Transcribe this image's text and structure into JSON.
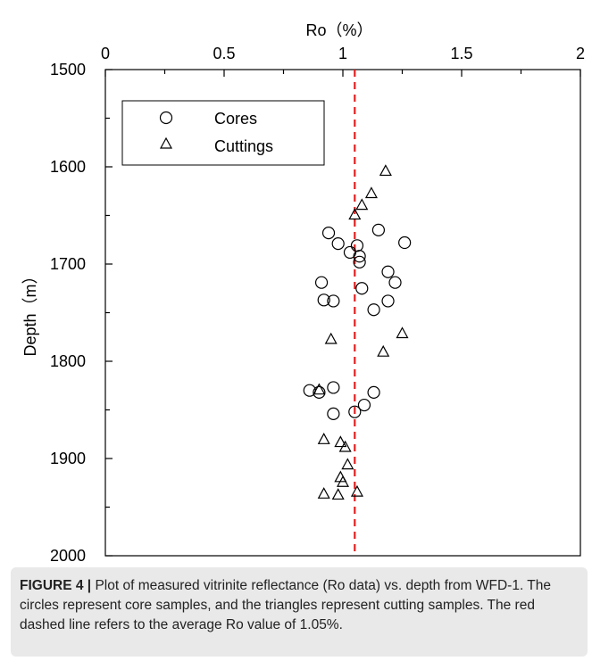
{
  "chart_data": {
    "type": "scatter",
    "x_axis_label": "Ro（%）",
    "y_axis_label": "Depth（m）",
    "x_axis_position": "top",
    "y_axis_inverted": true,
    "xlim": [
      0,
      2
    ],
    "ylim": [
      1500,
      2000
    ],
    "x_ticks": [
      "0",
      "0.5",
      "1",
      "1.5",
      "2"
    ],
    "y_ticks": [
      "1500",
      "1600",
      "1700",
      "1800",
      "1900",
      "2000"
    ],
    "grid": false,
    "legend": {
      "placement": "top-left",
      "entries": [
        "Cores",
        "Cuttings"
      ]
    },
    "series": [
      {
        "name": "Cores",
        "marker": "circle",
        "points": [
          {
            "x": 0.94,
            "y": 1668
          },
          {
            "x": 0.98,
            "y": 1679
          },
          {
            "x": 1.03,
            "y": 1688
          },
          {
            "x": 1.06,
            "y": 1681
          },
          {
            "x": 1.07,
            "y": 1692
          },
          {
            "x": 1.07,
            "y": 1698
          },
          {
            "x": 1.15,
            "y": 1665
          },
          {
            "x": 1.26,
            "y": 1678
          },
          {
            "x": 1.19,
            "y": 1708
          },
          {
            "x": 1.22,
            "y": 1719
          },
          {
            "x": 1.08,
            "y": 1725
          },
          {
            "x": 0.91,
            "y": 1719
          },
          {
            "x": 0.92,
            "y": 1737
          },
          {
            "x": 0.96,
            "y": 1738
          },
          {
            "x": 1.13,
            "y": 1747
          },
          {
            "x": 1.19,
            "y": 1738
          },
          {
            "x": 0.86,
            "y": 1830
          },
          {
            "x": 0.9,
            "y": 1832
          },
          {
            "x": 0.96,
            "y": 1827
          },
          {
            "x": 1.13,
            "y": 1832
          },
          {
            "x": 1.09,
            "y": 1845
          },
          {
            "x": 1.05,
            "y": 1852
          },
          {
            "x": 0.96,
            "y": 1854
          }
        ]
      },
      {
        "name": "Cuttings",
        "marker": "triangle",
        "points": [
          {
            "x": 1.18,
            "y": 1605
          },
          {
            "x": 1.12,
            "y": 1628
          },
          {
            "x": 1.08,
            "y": 1640
          },
          {
            "x": 1.05,
            "y": 1650
          },
          {
            "x": 0.95,
            "y": 1778
          },
          {
            "x": 1.25,
            "y": 1772
          },
          {
            "x": 1.17,
            "y": 1791
          },
          {
            "x": 0.9,
            "y": 1830
          },
          {
            "x": 0.92,
            "y": 1881
          },
          {
            "x": 0.99,
            "y": 1884
          },
          {
            "x": 1.01,
            "y": 1889
          },
          {
            "x": 1.02,
            "y": 1907
          },
          {
            "x": 0.99,
            "y": 1920
          },
          {
            "x": 1.0,
            "y": 1925
          },
          {
            "x": 0.92,
            "y": 1937
          },
          {
            "x": 0.98,
            "y": 1938
          },
          {
            "x": 1.06,
            "y": 1935
          }
        ]
      }
    ],
    "reference_line": {
      "x": 1.05,
      "style": "dashed",
      "color": "#e02020"
    }
  },
  "caption": {
    "label": "FIGURE 4 |",
    "text": " Plot of measured vitrinite reflectance (Ro data) vs. depth from WFD-1. The circles represent core samples, and the triangles represent cutting samples. The red dashed line refers to the average Ro value of 1.05%."
  }
}
